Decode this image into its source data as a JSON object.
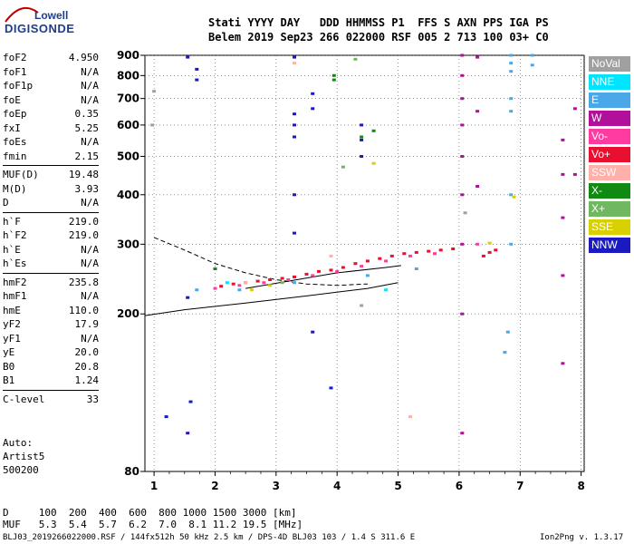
{
  "logo": {
    "top": "Lowell",
    "bottom": "DIGISONDE"
  },
  "header": {
    "line1": "Stati YYYY DAY   DDD HHMMSS P1  FFS S AXN PPS IGA PS",
    "line2": "Belem 2019 Sep23 266 022000 RSF 005 2 713 100 03+ C0"
  },
  "params": [
    {
      "k": "foF2",
      "v": "4.950"
    },
    {
      "k": "foF1",
      "v": "N/A"
    },
    {
      "k": "foF1p",
      "v": "N/A"
    },
    {
      "k": "foE",
      "v": "N/A"
    },
    {
      "k": "foEp",
      "v": "0.35"
    },
    {
      "k": "fxI",
      "v": "5.25"
    },
    {
      "k": "foEs",
      "v": "N/A"
    },
    {
      "k": "fmin",
      "v": "2.15"
    },
    {
      "k": "MUF(D)",
      "v": "19.48"
    },
    {
      "k": "M(D)",
      "v": "3.93"
    },
    {
      "k": "D",
      "v": "N/A"
    },
    {
      "k": "h`F",
      "v": "219.0"
    },
    {
      "k": "h`F2",
      "v": "219.0"
    },
    {
      "k": "h`E",
      "v": "N/A"
    },
    {
      "k": "h`Es",
      "v": "N/A"
    },
    {
      "k": "hmF2",
      "v": "235.8"
    },
    {
      "k": "hmF1",
      "v": "N/A"
    },
    {
      "k": "hmE",
      "v": "110.0"
    },
    {
      "k": "yF2",
      "v": "17.9"
    },
    {
      "k": "yF1",
      "v": "N/A"
    },
    {
      "k": "yE",
      "v": "20.0"
    },
    {
      "k": "B0",
      "v": "20.8"
    },
    {
      "k": "B1",
      "v": "1.24"
    },
    {
      "k": "C-level",
      "v": "33"
    }
  ],
  "auto": {
    "label": "Auto:",
    "name": "Artist5",
    "ver": "500200"
  },
  "legend": [
    {
      "label": "NoVal",
      "color": "#a0a0a0"
    },
    {
      "label": "NNE",
      "color": "#00e5ff"
    },
    {
      "label": "E",
      "color": "#4aa8e8"
    },
    {
      "label": "W",
      "color": "#b0109a"
    },
    {
      "label": "Vo-",
      "color": "#ff3aa0"
    },
    {
      "label": "Vo+",
      "color": "#e8102e"
    },
    {
      "label": "SSW",
      "color": "#ffb0a8"
    },
    {
      "label": "X-",
      "color": "#108a10"
    },
    {
      "label": "X+",
      "color": "#70b860"
    },
    {
      "label": "SSE",
      "color": "#d8d000"
    },
    {
      "label": "NNW",
      "color": "#1a1ac0"
    }
  ],
  "footer": {
    "d_line": "D     100  200  400  600  800 1000 1500 3000 [km]",
    "muf_line": "MUF   5.3  5.4  5.7  6.2  7.0  8.1 11.2 19.5 [MHz]",
    "file_line": "BLJ03_2019266022000.RSF / 144fx512h 50 kHz 2.5 km / DPS-4D BLJ03 103 / 1.4 S 311.6 E",
    "version": "Ion2Png v. 1.3.17"
  },
  "chart_data": {
    "type": "scatter",
    "title": "",
    "xlabel": "",
    "ylabel": "",
    "x_range": [
      0.85,
      8.05
    ],
    "y_scale": "log",
    "y_range": [
      80,
      900
    ],
    "x_ticks": [
      "1",
      "2",
      "3",
      "4",
      "5",
      "6",
      "7",
      "8"
    ],
    "y_ticks": [
      "80",
      "200",
      "300",
      "400",
      "500",
      "600",
      "700",
      "800",
      "900"
    ],
    "y_tick_values": [
      80,
      200,
      300,
      400,
      500,
      600,
      700,
      800,
      900
    ],
    "grid": true,
    "series": [
      {
        "name": "Vo+",
        "color": "#e8102e",
        "points": [
          [
            2.1,
            235
          ],
          [
            2.3,
            238
          ],
          [
            2.5,
            240
          ],
          [
            2.7,
            242
          ],
          [
            2.9,
            244
          ],
          [
            3.1,
            246
          ],
          [
            3.3,
            248
          ],
          [
            3.5,
            252
          ],
          [
            3.7,
            256
          ],
          [
            3.9,
            258
          ],
          [
            4.1,
            262
          ],
          [
            4.3,
            268
          ],
          [
            4.5,
            272
          ],
          [
            4.7,
            276
          ],
          [
            4.9,
            280
          ],
          [
            5.1,
            284
          ],
          [
            5.3,
            286
          ],
          [
            5.5,
            288
          ],
          [
            5.7,
            290
          ],
          [
            5.9,
            292
          ],
          [
            6.4,
            280
          ],
          [
            6.5,
            286
          ],
          [
            6.6,
            290
          ]
        ]
      },
      {
        "name": "Vo-",
        "color": "#ff3aa0",
        "points": [
          [
            2.0,
            232
          ],
          [
            2.4,
            236
          ],
          [
            2.8,
            240
          ],
          [
            3.2,
            244
          ],
          [
            3.6,
            250
          ],
          [
            4.0,
            256
          ],
          [
            4.4,
            264
          ],
          [
            4.8,
            272
          ],
          [
            5.2,
            280
          ],
          [
            5.6,
            284
          ],
          [
            6.3,
            300
          ]
        ]
      },
      {
        "name": "W",
        "color": "#b0109a",
        "points": [
          [
            6.05,
            900
          ],
          [
            6.05,
            800
          ],
          [
            6.05,
            700
          ],
          [
            6.05,
            600
          ],
          [
            6.05,
            500
          ],
          [
            6.05,
            400
          ],
          [
            6.05,
            300
          ],
          [
            6.05,
            200
          ],
          [
            6.05,
            100
          ],
          [
            6.3,
            890
          ],
          [
            6.3,
            650
          ],
          [
            6.3,
            420
          ],
          [
            7.7,
            550
          ],
          [
            7.7,
            450
          ],
          [
            7.7,
            350
          ],
          [
            7.7,
            250
          ],
          [
            7.7,
            150
          ],
          [
            7.9,
            660
          ],
          [
            7.9,
            450
          ]
        ]
      },
      {
        "name": "E",
        "color": "#4aa8e8",
        "points": [
          [
            6.85,
            900
          ],
          [
            6.85,
            860
          ],
          [
            6.85,
            820
          ],
          [
            6.85,
            700
          ],
          [
            6.85,
            650
          ],
          [
            6.85,
            400
          ],
          [
            6.85,
            300
          ],
          [
            7.2,
            900
          ],
          [
            7.2,
            850
          ],
          [
            6.8,
            180
          ],
          [
            6.75,
            160
          ],
          [
            1.7,
            230
          ],
          [
            2.4,
            230
          ],
          [
            3.3,
            240
          ],
          [
            4.5,
            250
          ],
          [
            5.3,
            260
          ]
        ]
      },
      {
        "name": "NNW",
        "color": "#1a1ac0",
        "points": [
          [
            1.55,
            890
          ],
          [
            1.7,
            830
          ],
          [
            1.7,
            780
          ],
          [
            3.3,
            890
          ],
          [
            3.3,
            640
          ],
          [
            3.3,
            600
          ],
          [
            3.3,
            560
          ],
          [
            3.3,
            400
          ],
          [
            3.3,
            320
          ],
          [
            3.6,
            720
          ],
          [
            3.6,
            660
          ],
          [
            4.4,
            600
          ],
          [
            4.4,
            550
          ],
          [
            4.4,
            500
          ],
          [
            1.55,
            220
          ],
          [
            1.6,
            120
          ],
          [
            1.55,
            100
          ],
          [
            1.2,
            110
          ],
          [
            3.6,
            180
          ],
          [
            3.9,
            130
          ]
        ]
      },
      {
        "name": "X-",
        "color": "#108a10",
        "points": [
          [
            3.95,
            800
          ],
          [
            3.95,
            780
          ],
          [
            4.4,
            560
          ],
          [
            4.6,
            580
          ],
          [
            2.0,
            260
          ]
        ]
      },
      {
        "name": "X+",
        "color": "#70b860",
        "points": [
          [
            4.3,
            880
          ],
          [
            4.1,
            470
          ],
          [
            3.1,
            240
          ]
        ]
      },
      {
        "name": "SSE",
        "color": "#d8d000",
        "points": [
          [
            2.6,
            230
          ],
          [
            2.9,
            236
          ],
          [
            4.6,
            480
          ],
          [
            6.9,
            395
          ],
          [
            6.5,
            302
          ]
        ]
      },
      {
        "name": "SSW",
        "color": "#ffb0a8",
        "points": [
          [
            3.3,
            860
          ],
          [
            3.9,
            280
          ],
          [
            5.2,
            110
          ],
          [
            2.5,
            240
          ]
        ]
      },
      {
        "name": "NNE",
        "color": "#00e5ff",
        "points": [
          [
            2.2,
            240
          ],
          [
            4.8,
            230
          ]
        ]
      },
      {
        "name": "NoVal",
        "color": "#a0a0a0",
        "points": [
          [
            1.0,
            730
          ],
          [
            0.97,
            600
          ],
          [
            4.4,
            210
          ],
          [
            6.1,
            360
          ]
        ]
      }
    ],
    "profile_lines": [
      {
        "style": "solid",
        "points": [
          [
            0.85,
            198
          ],
          [
            1.5,
            205
          ],
          [
            2.5,
            213
          ],
          [
            3.5,
            222
          ],
          [
            4.5,
            232
          ],
          [
            5.0,
            240
          ]
        ]
      },
      {
        "style": "dashed",
        "points": [
          [
            1.0,
            312
          ],
          [
            1.5,
            290
          ],
          [
            2.0,
            268
          ],
          [
            2.5,
            254
          ],
          [
            3.0,
            244
          ],
          [
            3.5,
            238
          ],
          [
            4.0,
            236
          ],
          [
            4.5,
            238
          ]
        ]
      },
      {
        "style": "solid",
        "points": [
          [
            2.5,
            232
          ],
          [
            3.2,
            242
          ],
          [
            4.0,
            254
          ],
          [
            4.8,
            262
          ],
          [
            5.05,
            265
          ]
        ]
      }
    ]
  }
}
